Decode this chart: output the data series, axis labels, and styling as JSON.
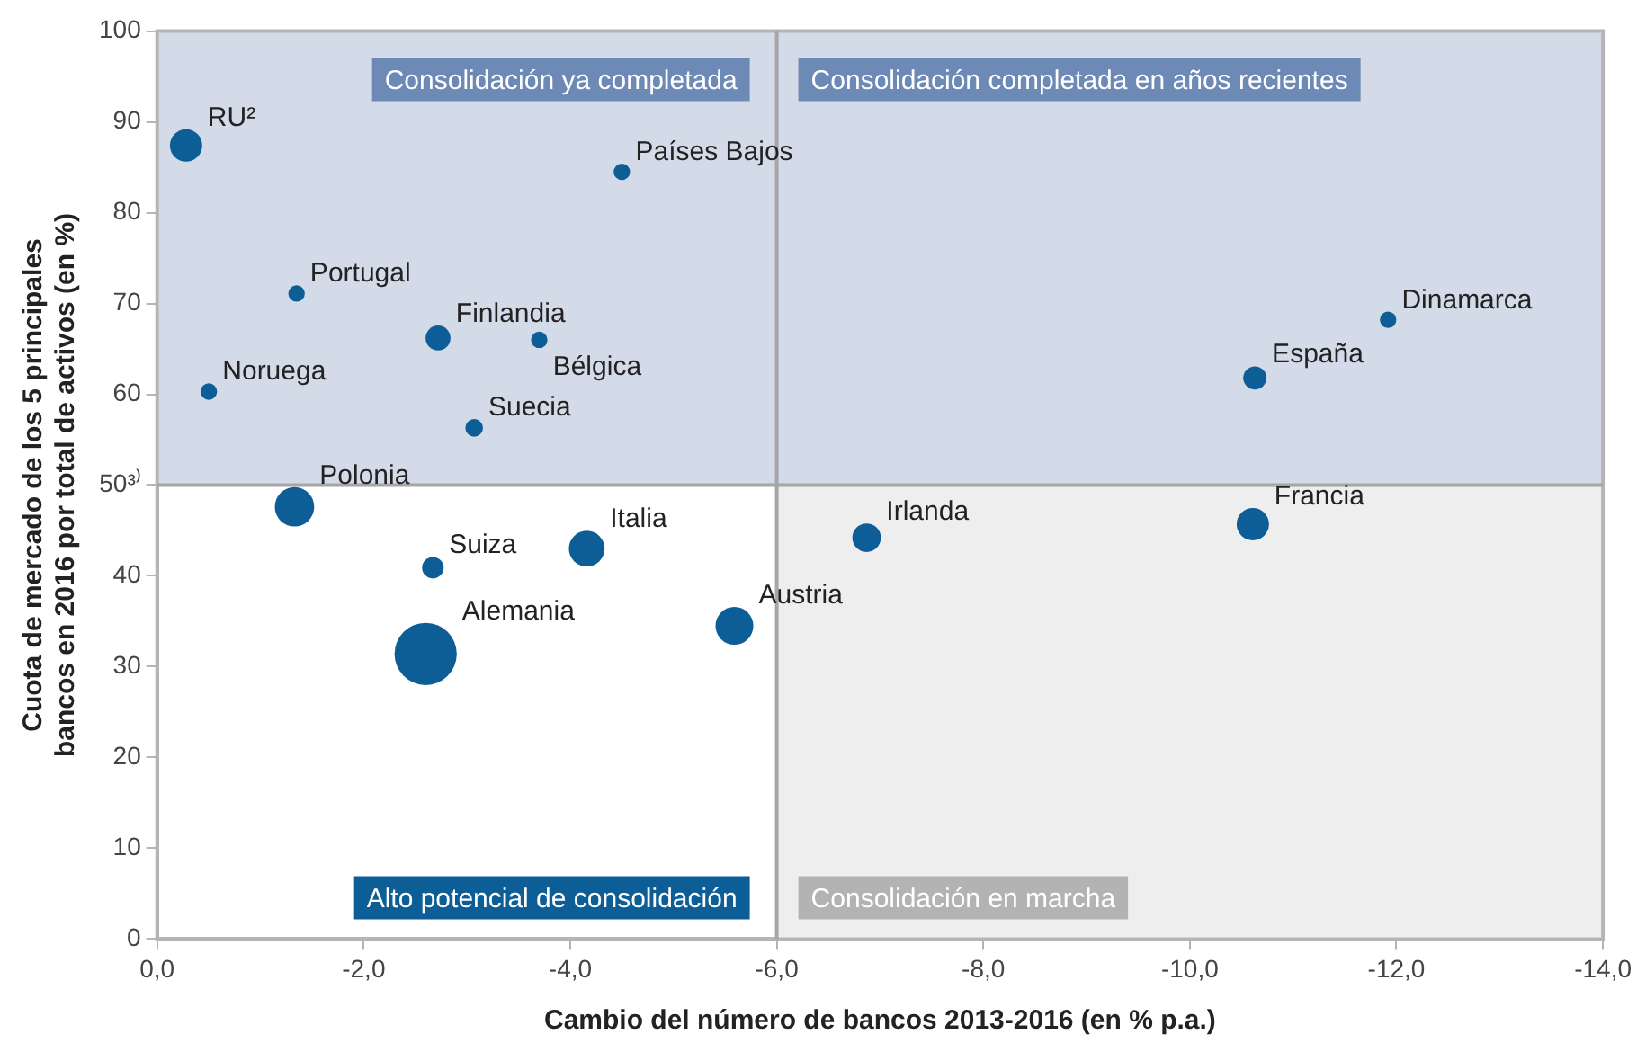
{
  "chart_data": {
    "type": "bubble",
    "xlabel": "Cambio del número de bancos 2013-2016 (en % p.a.)",
    "ylabel": "Cuota de mercado de los 5 principales bancos en 2016 por total de activos (en %)",
    "xlim": [
      0,
      -14
    ],
    "xticks": [
      {
        "value": 0,
        "label": "0,0"
      },
      {
        "value": -2,
        "label": "-2,0"
      },
      {
        "value": -4,
        "label": "-4,0"
      },
      {
        "value": -6,
        "label": "-6,0"
      },
      {
        "value": -8,
        "label": "-8,0"
      },
      {
        "value": -10,
        "label": "-10,0"
      },
      {
        "value": -12,
        "label": "-12,0"
      },
      {
        "value": -14,
        "label": "-14,0"
      }
    ],
    "ylim": [
      0,
      100
    ],
    "yticks": [
      0,
      10,
      20,
      30,
      40,
      {
        "value": 50,
        "label": "50³⁾"
      },
      60,
      70,
      80,
      90,
      100
    ],
    "grid": false,
    "legend": false,
    "bands": [
      {
        "axis": "x",
        "from": -6,
        "to": -14,
        "color": "#eeeeee"
      },
      {
        "axis": "y",
        "from": 50,
        "to": 100,
        "color": "#d3dae8"
      }
    ],
    "ref_lines": [
      {
        "axis": "x",
        "value": -6,
        "color": "#a6a6a6"
      },
      {
        "axis": "y",
        "value": 50,
        "color": "#a6a6a6"
      }
    ],
    "annotations": [
      "Consolidación ya completada",
      "Consolidación completada en años recientes",
      "Alto potencial de consolidación",
      "Consolidación en marcha"
    ],
    "series": [
      {
        "name": "RU²",
        "color": "#0d5e96",
        "x": [
          -0.28
        ],
        "values": [
          87.4
        ],
        "sizes": [
          0.27
        ]
      },
      {
        "name": "Países Bajos",
        "color": "#0d5e96",
        "x": [
          -4.5
        ],
        "values": [
          84.5
        ],
        "sizes": [
          0.07
        ]
      },
      {
        "name": "Portugal",
        "color": "#0d5e96",
        "x": [
          -1.35
        ],
        "values": [
          71.1
        ],
        "sizes": [
          0.07
        ]
      },
      {
        "name": "Finlandia",
        "color": "#0d5e96",
        "x": [
          -2.72
        ],
        "values": [
          66.2
        ],
        "sizes": [
          0.16
        ]
      },
      {
        "name": "Bélgica",
        "color": "#0d5e96",
        "x": [
          -3.7
        ],
        "values": [
          66
        ],
        "sizes": [
          0.07
        ]
      },
      {
        "name": "Noruega",
        "color": "#0d5e96",
        "x": [
          -0.5
        ],
        "values": [
          60.3
        ],
        "sizes": [
          0.07
        ]
      },
      {
        "name": "Suecia",
        "color": "#0d5e96",
        "x": [
          -3.07
        ],
        "values": [
          56.3
        ],
        "sizes": [
          0.08
        ]
      },
      {
        "name": "Dinamarca",
        "color": "#0d5e96",
        "x": [
          -11.92
        ],
        "values": [
          68.2
        ],
        "sizes": [
          0.07
        ]
      },
      {
        "name": "España",
        "color": "#0d5e96",
        "x": [
          -10.63
        ],
        "values": [
          61.8
        ],
        "sizes": [
          0.14
        ]
      },
      {
        "name": "Polonia",
        "color": "#0d5e96",
        "x": [
          -1.33
        ],
        "values": [
          47.6
        ],
        "sizes": [
          0.4
        ]
      },
      {
        "name": "Suiza",
        "color": "#0d5e96",
        "x": [
          -2.67
        ],
        "values": [
          40.9
        ],
        "sizes": [
          0.12
        ]
      },
      {
        "name": "Italia",
        "color": "#0d5e96",
        "x": [
          -4.16
        ],
        "values": [
          43
        ],
        "sizes": [
          0.33
        ]
      },
      {
        "name": "Austria",
        "color": "#0d5e96",
        "x": [
          -5.59
        ],
        "values": [
          34.5
        ],
        "sizes": [
          0.37
        ]
      },
      {
        "name": "Alemania",
        "color": "#0d5e96",
        "x": [
          -2.6
        ],
        "values": [
          31.4
        ],
        "sizes": [
          1
        ]
      },
      {
        "name": "Irlanda",
        "color": "#0d5e96",
        "x": [
          -6.87
        ],
        "values": [
          44.2
        ],
        "sizes": [
          0.21
        ]
      },
      {
        "name": "Francia",
        "color": "#0d5e96",
        "x": [
          -10.61
        ],
        "values": [
          45.7
        ],
        "sizes": [
          0.27
        ]
      }
    ]
  }
}
